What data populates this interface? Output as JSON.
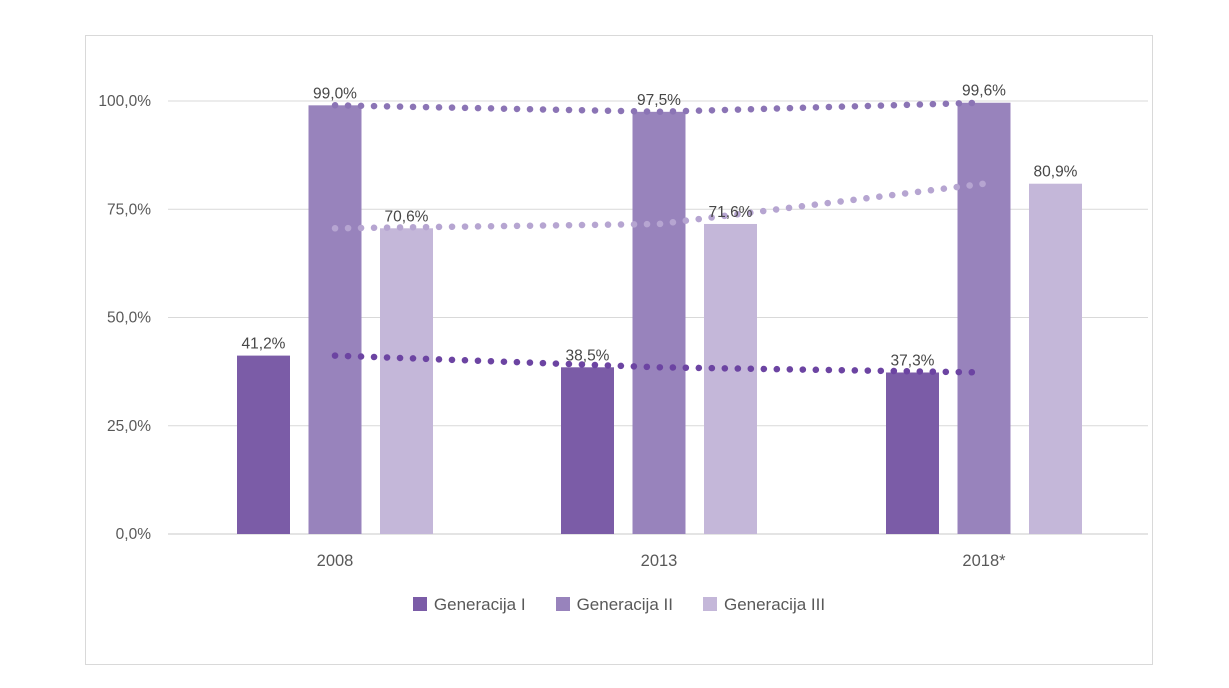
{
  "chart_data": {
    "type": "bar",
    "title": "",
    "categories": [
      "2008",
      "2013",
      "2018*"
    ],
    "series": [
      {
        "name": "Generacija I",
        "values": [
          41.2,
          38.5,
          37.3
        ],
        "value_labels": [
          "41,2%",
          "38,5%",
          "37,3%"
        ],
        "bar_color": "#7b5ca7",
        "trend_color": "#6c44a2"
      },
      {
        "name": "Generacija II",
        "values": [
          99.0,
          97.5,
          99.6
        ],
        "value_labels": [
          "99,0%",
          "97,5%",
          "99,6%"
        ],
        "bar_color": "#9883bc",
        "trend_color": "#8b74b5"
      },
      {
        "name": "Generacija III",
        "values": [
          70.6,
          71.6,
          80.9
        ],
        "value_labels": [
          "70,6%",
          "71,6%",
          "80,9%"
        ],
        "bar_color": "#c4b7d9",
        "trend_color": "#b6a5d1"
      }
    ],
    "y_axis": {
      "min": 0,
      "max": 100,
      "step": 25,
      "tick_labels": [
        "0,0%",
        "25,0%",
        "50,0%",
        "75,0%",
        "100,0%"
      ]
    },
    "xlabel": "",
    "ylabel": "",
    "grid": true,
    "legend_position": "bottom",
    "legend": [
      "Generacija I",
      "Generacija II",
      "Generacija III"
    ],
    "trendlines": "dotted, one per series, through category centers",
    "colors": {
      "gridline": "#d9d9d9",
      "axis_line": "#c9c9c9",
      "axis_text": "#595959",
      "data_label_text": "#474747",
      "frame_border": "#d9d9d9",
      "background": "#ffffff"
    }
  }
}
